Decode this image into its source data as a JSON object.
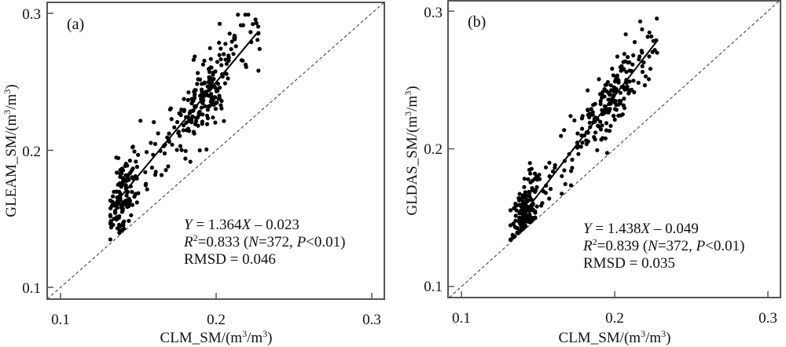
{
  "chart_data": [
    {
      "type": "scatter",
      "panel_label": "(a)",
      "xlabel_main": "CLM_SM/(m",
      "xlabel_sup1": "3",
      "xlabel_mid": "/m",
      "xlabel_sup2": "3",
      "xlabel_end": ")",
      "ylabel_main": "GLEAM_SM/(m",
      "ylabel_sup1": "3",
      "ylabel_mid": "/m",
      "ylabel_sup2": "3",
      "ylabel_end": ")",
      "xlim": [
        0.0914,
        0.3081
      ],
      "ylim": [
        0.0914,
        0.308
      ],
      "xticks": [
        "0.1",
        "0.2",
        "0.3"
      ],
      "xtick_values": [
        0.1,
        0.2,
        0.3
      ],
      "yticks": [
        "0.1",
        "0.2",
        "0.3"
      ],
      "ytick_values": [
        0.1,
        0.2,
        0.3
      ],
      "regression": {
        "slope": 1.364,
        "intercept": -0.023,
        "x_range": [
          0.133,
          0.226
        ]
      },
      "reference_line": "1:1",
      "equation": {
        "y": "Y",
        "eq": " = 1.364",
        "x": "X",
        "rest": " – 0.023"
      },
      "r2": {
        "r": "R",
        "sup": "2",
        "val": "=0.833 (",
        "n": "N",
        "n_val": "=372, ",
        "p": "P",
        "p_val": "<0.01)"
      },
      "rmsd": "RMSD = 0.046",
      "n_points": 372,
      "cluster": {
        "x_center": 0.14,
        "y_center": 0.165
      },
      "scatter_sd": {
        "x": 0.026,
        "y_resid": 0.014
      },
      "seed": 11
    },
    {
      "type": "scatter",
      "panel_label": "(b)",
      "xlabel_main": "CLM_SM/(m",
      "xlabel_sup1": "3",
      "xlabel_mid": "/m",
      "xlabel_sup2": "3",
      "xlabel_end": ")",
      "ylabel_main": "GLDAS_SM/(m",
      "ylabel_sup1": "3",
      "ylabel_mid": "/m",
      "ylabel_sup2": "3",
      "ylabel_end": ")",
      "xlim": [
        0.0912,
        0.3082
      ],
      "ylim": [
        0.092,
        0.3075
      ],
      "xticks": [
        "0.1",
        "0.2",
        "0.3"
      ],
      "xtick_values": [
        0.1,
        0.2,
        0.3
      ],
      "yticks": [
        "0.1",
        "0.2",
        "0.3"
      ],
      "ytick_values": [
        0.1,
        0.2,
        0.3
      ],
      "regression": {
        "slope": 1.438,
        "intercept": -0.049,
        "x_range": [
          0.138,
          0.228
        ]
      },
      "reference_line": "1:1",
      "equation": {
        "y": "Y",
        "eq": " = 1.438",
        "x": "X",
        "rest": " – 0.049"
      },
      "r2": {
        "r": "R",
        "sup": "2",
        "val": "=0.839 (",
        "n": "N",
        "n_val": "=372, ",
        "p": "P",
        "p_val": "<0.01)"
      },
      "rmsd": "RMSD = 0.035",
      "n_points": 372,
      "cluster": {
        "x_center": 0.142,
        "y_center": 0.15
      },
      "scatter_sd": {
        "x": 0.027,
        "y_resid": 0.012
      },
      "seed": 23
    }
  ],
  "colors": {
    "axis": "#555555",
    "point": "#000000",
    "line": "#000000",
    "text": "#111111"
  }
}
